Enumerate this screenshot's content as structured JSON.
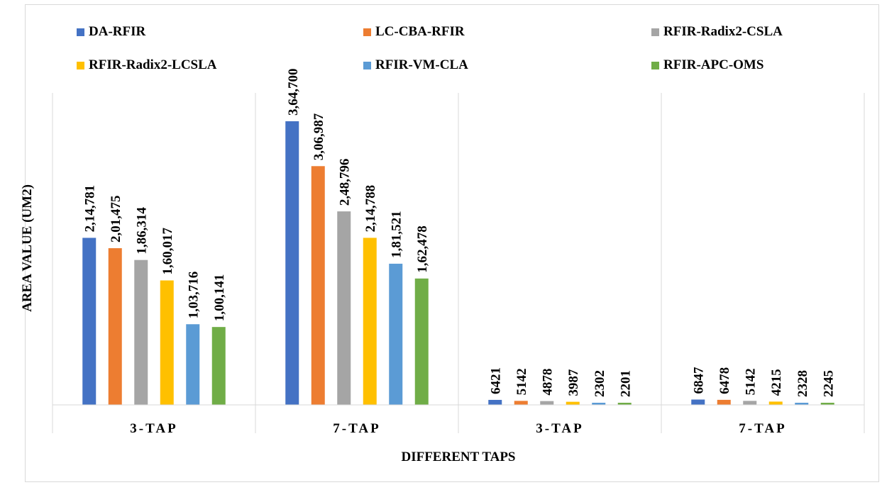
{
  "chart_data": {
    "type": "bar",
    "categories": [
      "3-TAP",
      "7-TAP",
      "3-TAP",
      "7-TAP"
    ],
    "series": [
      {
        "name": "DA-RFIR",
        "color": "#4472C4",
        "values": [
          214781,
          364700,
          6421,
          6847
        ],
        "labels": [
          "2,14,781",
          "3,64,700",
          "6421",
          "6847"
        ]
      },
      {
        "name": "LC-CBA-RFIR",
        "color": "#ED7D31",
        "values": [
          201475,
          306987,
          5142,
          6478
        ],
        "labels": [
          "2,01,475",
          "3,06,987",
          "5142",
          "6478"
        ]
      },
      {
        "name": "RFIR-Radix2-CSLA",
        "color": "#A5A5A5",
        "values": [
          186314,
          248796,
          4878,
          5142
        ],
        "labels": [
          "1,86,314",
          "2,48,796",
          "4878",
          "5142"
        ]
      },
      {
        "name": "RFIR-Radix2-LCSLA",
        "color": "#FFC000",
        "values": [
          160017,
          214788,
          3987,
          4215
        ],
        "labels": [
          "1,60,017",
          "2,14,788",
          "3987",
          "4215"
        ]
      },
      {
        "name": "RFIR-VM-CLA",
        "color": "#5B9BD5",
        "values": [
          103716,
          181521,
          2302,
          2328
        ],
        "labels": [
          "1,03,716",
          "1,81,521",
          "2302",
          "2328"
        ]
      },
      {
        "name": "RFIR-APC-OMS",
        "color": "#70AD47",
        "values": [
          100141,
          162478,
          2201,
          2245
        ],
        "labels": [
          "1,00,141",
          "1,62,478",
          "2201",
          "2245"
        ]
      }
    ],
    "xlabel": "DIFFERENT TAPS",
    "ylabel": "AREA VALUE (UM2)",
    "ylim": [
      0,
      364700
    ],
    "grid": false,
    "legend_position": "top"
  }
}
